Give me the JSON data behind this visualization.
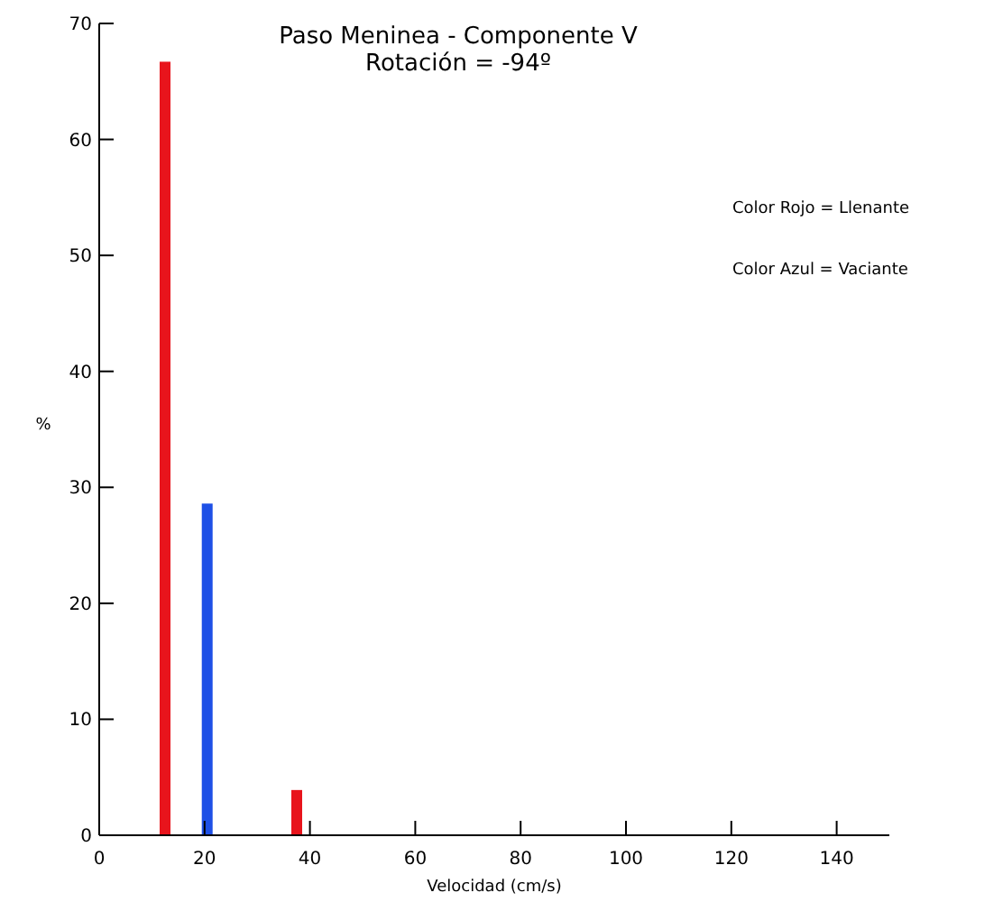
{
  "chart_data": {
    "type": "bar",
    "title": "Paso Meninea - Componente V",
    "subtitle": "Rotación = -94º",
    "xlabel": "Velocidad (cm/s)",
    "ylabel": "%",
    "series": [
      {
        "color": "#e8141c",
        "x": [
          12.5,
          37.5
        ],
        "values": [
          66.7,
          3.9
        ]
      },
      {
        "color": "#1e50e6",
        "x": [
          20.5
        ],
        "values": [
          28.6
        ]
      }
    ],
    "xlim": [
      0,
      150
    ],
    "xticks": [
      0,
      20,
      40,
      60,
      80,
      100,
      120,
      140
    ],
    "ylim": [
      0,
      70
    ],
    "yticks": [
      0,
      10,
      20,
      30,
      40,
      50,
      60,
      70
    ],
    "annotations": [
      "Color Rojo = Llenante",
      "Color Azul = Vaciante"
    ]
  }
}
